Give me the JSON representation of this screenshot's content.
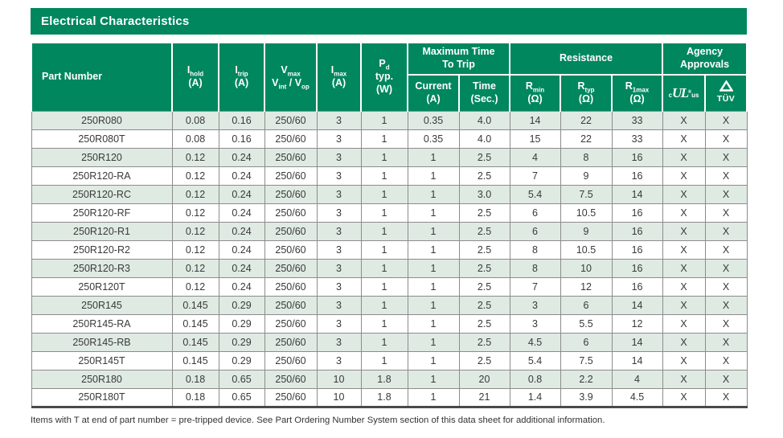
{
  "title": "Electrical Characteristics",
  "colors": {
    "header_green": "#00875d",
    "row_alt_green": "#dfeae3",
    "grid_border": "#8c8c8c",
    "bottom_border": "#4a4a4a",
    "header_text": "#ffffff",
    "body_text": "#3a3a3a"
  },
  "columns": {
    "part_number": "Part Number",
    "i_hold": {
      "sym": "I",
      "sub": "hold",
      "unit": "(A)"
    },
    "i_trip": {
      "sym": "I",
      "sub": "trip",
      "unit": "(A)"
    },
    "v_max": {
      "sym": "V",
      "sub": "max",
      "sym2": "V",
      "sub2": "int",
      "sep": " / ",
      "sym3": "V",
      "sub3": "op"
    },
    "i_max": {
      "sym": "I",
      "sub": "max",
      "unit": "(A)"
    },
    "p_d": {
      "sym": "P",
      "sub": "d",
      "line2": "typ.",
      "unit": "(W)"
    },
    "group_trip": {
      "line1": "Maximum Time",
      "line2": "To Trip"
    },
    "trip_current": {
      "line1": "Current",
      "line2": "(A)"
    },
    "trip_time": {
      "line1": "Time",
      "line2": "(Sec.)"
    },
    "group_resistance": "Resistance",
    "r_min": {
      "sym": "R",
      "sub": "min",
      "unit": "(Ω)"
    },
    "r_typ": {
      "sym": "R",
      "sub": "typ",
      "unit": "(Ω)"
    },
    "r_1max": {
      "sym": "R",
      "sub": "1max",
      "unit": "(Ω)"
    },
    "group_agency": {
      "line1": "Agency",
      "line2": "Approvals"
    },
    "ul_mark": {
      "prefix": "c",
      "main": "UL",
      "reg": "®",
      "suffix": "us"
    },
    "tuv_mark": {
      "label": "TÜV"
    }
  },
  "column_names": [
    "part-number",
    "i-hold",
    "i-trip",
    "v-max",
    "i-max",
    "p-d-typ",
    "trip-current",
    "trip-time",
    "r-min",
    "r-typ",
    "r-1max",
    "ul-approval",
    "tuv-approval"
  ],
  "rows": [
    [
      "250R080",
      "0.08",
      "0.16",
      "250/60",
      "3",
      "1",
      "0.35",
      "4.0",
      "14",
      "22",
      "33",
      "X",
      "X"
    ],
    [
      "250R080T",
      "0.08",
      "0.16",
      "250/60",
      "3",
      "1",
      "0.35",
      "4.0",
      "15",
      "22",
      "33",
      "X",
      "X"
    ],
    [
      "250R120",
      "0.12",
      "0.24",
      "250/60",
      "3",
      "1",
      "1",
      "2.5",
      "4",
      "8",
      "16",
      "X",
      "X"
    ],
    [
      "250R120-RA",
      "0.12",
      "0.24",
      "250/60",
      "3",
      "1",
      "1",
      "2.5",
      "7",
      "9",
      "16",
      "X",
      "X"
    ],
    [
      "250R120-RC",
      "0.12",
      "0.24",
      "250/60",
      "3",
      "1",
      "1",
      "3.0",
      "5.4",
      "7.5",
      "14",
      "X",
      "X"
    ],
    [
      "250R120-RF",
      "0.12",
      "0.24",
      "250/60",
      "3",
      "1",
      "1",
      "2.5",
      "6",
      "10.5",
      "16",
      "X",
      "X"
    ],
    [
      "250R120-R1",
      "0.12",
      "0.24",
      "250/60",
      "3",
      "1",
      "1",
      "2.5",
      "6",
      "9",
      "16",
      "X",
      "X"
    ],
    [
      "250R120-R2",
      "0.12",
      "0.24",
      "250/60",
      "3",
      "1",
      "1",
      "2.5",
      "8",
      "10.5",
      "16",
      "X",
      "X"
    ],
    [
      "250R120-R3",
      "0.12",
      "0.24",
      "250/60",
      "3",
      "1",
      "1",
      "2.5",
      "8",
      "10",
      "16",
      "X",
      "X"
    ],
    [
      "250R120T",
      "0.12",
      "0.24",
      "250/60",
      "3",
      "1",
      "1",
      "2.5",
      "7",
      "12",
      "16",
      "X",
      "X"
    ],
    [
      "250R145",
      "0.145",
      "0.29",
      "250/60",
      "3",
      "1",
      "1",
      "2.5",
      "3",
      "6",
      "14",
      "X",
      "X"
    ],
    [
      "250R145-RA",
      "0.145",
      "0.29",
      "250/60",
      "3",
      "1",
      "1",
      "2.5",
      "3",
      "5.5",
      "12",
      "X",
      "X"
    ],
    [
      "250R145-RB",
      "0.145",
      "0.29",
      "250/60",
      "3",
      "1",
      "1",
      "2.5",
      "4.5",
      "6",
      "14",
      "X",
      "X"
    ],
    [
      "250R145T",
      "0.145",
      "0.29",
      "250/60",
      "3",
      "1",
      "1",
      "2.5",
      "5.4",
      "7.5",
      "14",
      "X",
      "X"
    ],
    [
      "250R180",
      "0.18",
      "0.65",
      "250/60",
      "10",
      "1.8",
      "1",
      "20",
      "0.8",
      "2.2",
      "4",
      "X",
      "X"
    ],
    [
      "250R180T",
      "0.18",
      "0.65",
      "250/60",
      "10",
      "1.8",
      "1",
      "21",
      "1.4",
      "3.9",
      "4.5",
      "X",
      "X"
    ]
  ],
  "footnote": "Items with T at end of part number = pre-tripped device. See Part Ordering Number System section of this data sheet for additional information."
}
